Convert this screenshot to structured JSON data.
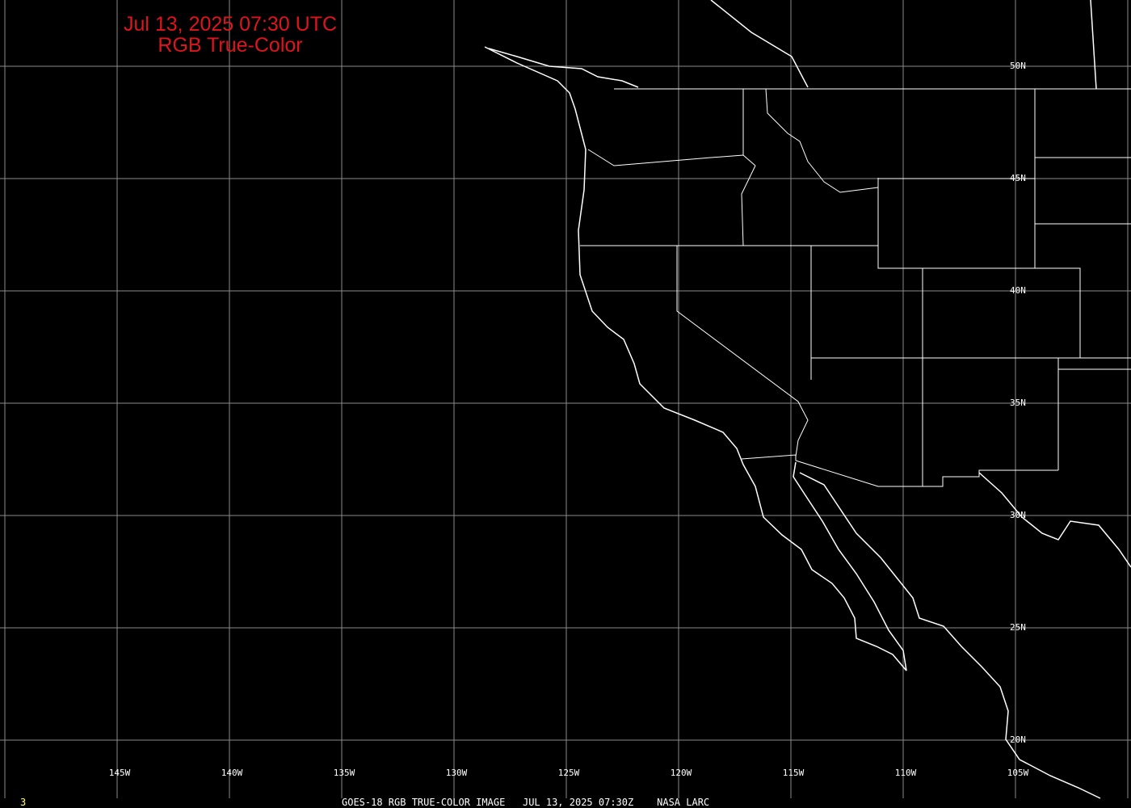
{
  "header": {
    "title_line1": "Jul 13, 2025 07:30 UTC",
    "title_line2": "RGB True-Color"
  },
  "map": {
    "projection": "cylindrical lat/lon",
    "background_color": "#000000",
    "title_color": "#e0141c",
    "grid_color": "#8a8a8a",
    "longitude_labels": [
      "145W",
      "140W",
      "135W",
      "130W",
      "125W",
      "120W",
      "115W",
      "110W",
      "105W"
    ],
    "latitude_labels": [
      "50N",
      "45N",
      "40N",
      "35N",
      "30N",
      "25N",
      "20N"
    ]
  },
  "footer": {
    "frame_number": "3",
    "caption": "GOES-18 RGB TRUE-COLOR IMAGE   JUL 13, 2025 07:30Z    NASA LARC"
  }
}
